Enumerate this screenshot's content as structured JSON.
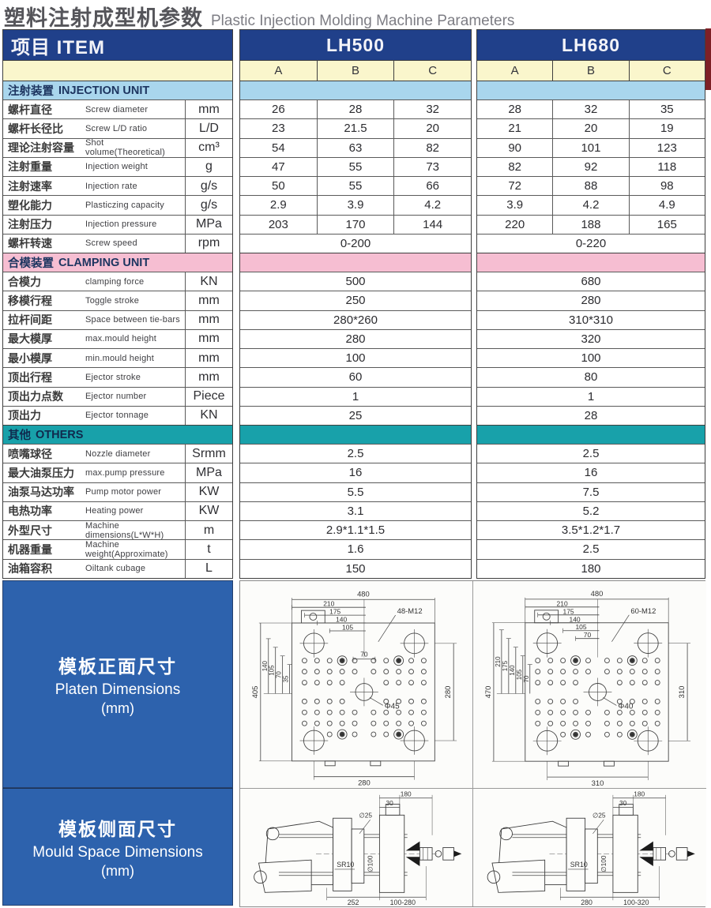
{
  "page": {
    "title_zh": "塑料注射成型机参数",
    "title_en": "Plastic Injection Molding Machine Parameters"
  },
  "colors": {
    "header_navy": "#20408a",
    "subheader_yellow": "#faf6cc",
    "injection_band_blue": "#a9d6ed",
    "clamping_band_pink": "#f6bed2",
    "others_band_teal": "#18a1aa",
    "side_panel_blue": "#2d62ad"
  },
  "table": {
    "item_header": "项目 ITEM",
    "models": [
      {
        "name": "LH500"
      },
      {
        "name": "LH680"
      }
    ],
    "sub_columns": [
      "A",
      "B",
      "C"
    ],
    "sections": [
      {
        "title_zh": "注射装置",
        "title_en": "INJECTION UNIT",
        "band": "injection",
        "rows": [
          {
            "zh": "螺杆直径",
            "en": "Screw diameter",
            "unit": "mm",
            "lh500": [
              "26",
              "28",
              "32"
            ],
            "lh680": [
              "28",
              "32",
              "35"
            ]
          },
          {
            "zh": "螺杆长径比",
            "en": "Screw L/D ratio",
            "unit": "L/D",
            "lh500": [
              "23",
              "21.5",
              "20"
            ],
            "lh680": [
              "21",
              "20",
              "19"
            ]
          },
          {
            "zh": "理论注射容量",
            "en": "Shot volume(Theoretical)",
            "unit": "cm³",
            "lh500": [
              "54",
              "63",
              "82"
            ],
            "lh680": [
              "90",
              "101",
              "123"
            ]
          },
          {
            "zh": "注射重量",
            "en": "Injection weight",
            "unit": "g",
            "lh500": [
              "47",
              "55",
              "73"
            ],
            "lh680": [
              "82",
              "92",
              "118"
            ]
          },
          {
            "zh": "注射速率",
            "en": "Injection rate",
            "unit": "g/s",
            "lh500": [
              "50",
              "55",
              "66"
            ],
            "lh680": [
              "72",
              "88",
              "98"
            ]
          },
          {
            "zh": "塑化能力",
            "en": "Plasticzing capacity",
            "unit": "g/s",
            "lh500": [
              "2.9",
              "3.9",
              "4.2"
            ],
            "lh680": [
              "3.9",
              "4.2",
              "4.9"
            ]
          },
          {
            "zh": "注射压力",
            "en": "Injection pressure",
            "unit": "MPa",
            "lh500": [
              "203",
              "170",
              "144"
            ],
            "lh680": [
              "220",
              "188",
              "165"
            ]
          },
          {
            "zh": "螺杆转速",
            "en": "Screw speed",
            "unit": "rpm",
            "lh500": [
              "0-200"
            ],
            "lh680": [
              "0-220"
            ]
          }
        ]
      },
      {
        "title_zh": "合模装置",
        "title_en": "CLAMPING UNIT",
        "band": "clamping",
        "rows": [
          {
            "zh": "合模力",
            "en": "clamping force",
            "unit": "KN",
            "lh500": [
              "500"
            ],
            "lh680": [
              "680"
            ]
          },
          {
            "zh": "移模行程",
            "en": "Toggle stroke",
            "unit": "mm",
            "lh500": [
              "250"
            ],
            "lh680": [
              "280"
            ]
          },
          {
            "zh": "拉杆间距",
            "en": "Space between tie-bars",
            "unit": "mm",
            "lh500": [
              "280*260"
            ],
            "lh680": [
              "310*310"
            ]
          },
          {
            "zh": "最大模厚",
            "en": "max.mould height",
            "unit": "mm",
            "lh500": [
              "280"
            ],
            "lh680": [
              "320"
            ]
          },
          {
            "zh": "最小模厚",
            "en": "min.mould height",
            "unit": "mm",
            "lh500": [
              "100"
            ],
            "lh680": [
              "100"
            ]
          },
          {
            "zh": "顶出行程",
            "en": "Ejector stroke",
            "unit": "mm",
            "lh500": [
              "60"
            ],
            "lh680": [
              "80"
            ]
          },
          {
            "zh": "顶出力点数",
            "en": "Ejector number",
            "unit": "Piece",
            "lh500": [
              "1"
            ],
            "lh680": [
              "1"
            ]
          },
          {
            "zh": "顶出力",
            "en": "Ejector tonnage",
            "unit": "KN",
            "lh500": [
              "25"
            ],
            "lh680": [
              "28"
            ]
          }
        ]
      },
      {
        "title_zh": "其他",
        "title_en": "OTHERS",
        "band": "others",
        "rows": [
          {
            "zh": "喷嘴球径",
            "en": "Nozzle diameter",
            "unit": "Srmm",
            "lh500": [
              "2.5"
            ],
            "lh680": [
              "2.5"
            ]
          },
          {
            "zh": "最大油泵压力",
            "en": "max.pump pressure",
            "unit": "MPa",
            "lh500": [
              "16"
            ],
            "lh680": [
              "16"
            ]
          },
          {
            "zh": "油泵马达功率",
            "en": "Pump motor power",
            "unit": "KW",
            "lh500": [
              "5.5"
            ],
            "lh680": [
              "7.5"
            ]
          },
          {
            "zh": "电热功率",
            "en": "Heating power",
            "unit": "KW",
            "lh500": [
              "3.1"
            ],
            "lh680": [
              "5.2"
            ]
          },
          {
            "zh": "外型尺寸",
            "en": "Machine dimensions(L*W*H)",
            "unit": "m",
            "lh500": [
              "2.9*1.1*1.5"
            ],
            "lh680": [
              "3.5*1.2*1.7"
            ]
          },
          {
            "zh": "机器重量",
            "en": "Machine weight(Approximate)",
            "unit": "t",
            "lh500": [
              "1.6"
            ],
            "lh680": [
              "2.5"
            ]
          },
          {
            "zh": "油箱容积",
            "en": "Oiltank cubage",
            "unit": "L",
            "lh500": [
              "150"
            ],
            "lh680": [
              "180"
            ]
          }
        ]
      }
    ]
  },
  "diagrams": {
    "platen_row": {
      "label_zh": "模板正面尺寸",
      "label_en": "Platen Dimensions",
      "unit": "(mm)"
    },
    "mould_row": {
      "label_zh": "模板侧面尺寸",
      "label_en": "Mould Space Dimensions",
      "unit": "(mm)"
    },
    "platen": [
      {
        "machine": "LH500",
        "total_width": "480",
        "top_dims": [
          "210",
          "175",
          "140",
          "105"
        ],
        "inner_dim": "70",
        "total_height": "405",
        "left_dims": [
          "140",
          "105",
          "70",
          "35"
        ],
        "right_dim": "280",
        "bottom_dim": "280",
        "bolt_callout": "48-M12",
        "center_hole": "Φ45"
      },
      {
        "machine": "LH680",
        "total_width": "480",
        "top_dims": [
          "210",
          "175",
          "140",
          "105",
          "70"
        ],
        "inner_dim": "",
        "total_height": "470",
        "left_dims": [
          "210",
          "175",
          "140",
          "105",
          "70"
        ],
        "right_dim": "310",
        "bottom_dim": "310",
        "bolt_callout": "60-M12",
        "center_hole": "Φ40"
      }
    ],
    "mould": [
      {
        "machine": "LH500",
        "dim_depth": "180",
        "dim_step": "30",
        "nozzle_hole": "∅25",
        "locating_ring": "∅100",
        "nozzle_sphere": "SR10",
        "dim_body": "252",
        "mould_range": "100-280"
      },
      {
        "machine": "LH680",
        "dim_depth": "180",
        "dim_step": "30",
        "nozzle_hole": "∅25",
        "locating_ring": "∅100",
        "nozzle_sphere": "SR10",
        "dim_body": "280",
        "mould_range": "100-320"
      }
    ]
  }
}
